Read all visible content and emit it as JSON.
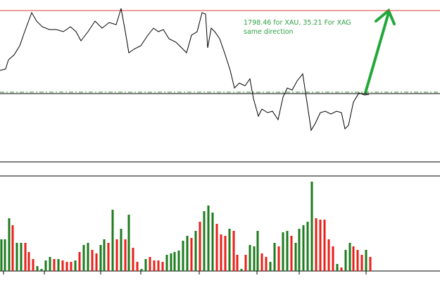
{
  "chart_data": [
    {
      "type": "line",
      "color": "#000000",
      "annotations": [
        "1798.46 for XAU, 35.21 For XAG",
        "same direction"
      ],
      "annotation_color": "#2ea043",
      "xlim": [
        0,
        625
      ],
      "ylim": [
        0,
        232
      ],
      "x": [
        0,
        8,
        12,
        20,
        28,
        35,
        45,
        52,
        60,
        70,
        80,
        90,
        100,
        108,
        115,
        125,
        135,
        145,
        155,
        165,
        172,
        178,
        183,
        190,
        200,
        210,
        218,
        225,
        232,
        240,
        250,
        258,
        265,
        272,
        280,
        287,
        292,
        295,
        300,
        305,
        312,
        320,
        327,
        333,
        340,
        348,
        355,
        360,
        367,
        372,
        380,
        387,
        395,
        402,
        408,
        415,
        422,
        430,
        436,
        442,
        448,
        455,
        462,
        470,
        478,
        485,
        490,
        495,
        502,
        510,
        518,
        524
      ],
      "values": [
        132,
        134,
        147,
        154,
        167,
        187,
        214,
        202,
        194,
        190,
        190,
        187,
        194,
        187,
        174,
        187,
        202,
        192,
        200,
        197,
        220,
        187,
        157,
        162,
        167,
        182,
        192,
        187,
        190,
        177,
        172,
        164,
        157,
        182,
        187,
        214,
        212,
        164,
        192,
        187,
        177,
        154,
        132,
        107,
        114,
        110,
        120,
        92,
        67,
        77,
        72,
        74,
        62,
        94,
        107,
        104,
        117,
        127,
        87,
        47,
        57,
        72,
        74,
        70,
        74,
        72,
        49,
        54,
        87,
        100,
        97,
        98
      ],
      "hlines": [
        {
          "value": 217,
          "color": "#e03b3b",
          "dash": "none"
        },
        {
          "value": 101,
          "color": "#2e8b2e",
          "dash": "6 3 2 3"
        },
        {
          "value": 99,
          "color": "#000000",
          "dash": "none"
        }
      ]
    },
    {
      "type": "bar",
      "xlim": [
        0,
        625
      ],
      "ylim": [
        0,
        135
      ],
      "x": [
        2,
        7,
        13,
        18,
        24,
        30,
        36,
        41,
        47,
        53,
        59,
        65,
        71,
        77,
        83,
        89,
        95,
        101,
        107,
        113,
        119,
        125,
        131,
        137,
        143,
        148,
        154,
        160,
        166,
        172,
        178,
        183,
        189,
        195,
        201,
        207,
        213,
        219,
        225,
        231,
        237,
        243,
        248,
        254,
        260,
        266,
        272,
        278,
        284,
        290,
        296,
        302,
        308,
        314,
        320,
        326,
        332,
        337,
        343,
        349,
        355,
        361,
        366,
        372,
        378,
        384,
        390,
        396,
        402,
        408,
        414,
        420,
        425,
        431,
        437,
        443,
        449,
        455,
        461,
        467,
        473,
        479,
        485,
        491,
        497,
        502,
        508,
        514,
        520,
        526
      ],
      "values": [
        45,
        45,
        75,
        65,
        40,
        40,
        40,
        27,
        17,
        7,
        3,
        15,
        20,
        17,
        17,
        15,
        13,
        13,
        15,
        27,
        37,
        40,
        30,
        25,
        37,
        45,
        40,
        87,
        45,
        60,
        45,
        80,
        33,
        13,
        3,
        17,
        20,
        15,
        15,
        13,
        23,
        25,
        27,
        29,
        43,
        50,
        47,
        57,
        70,
        85,
        93,
        83,
        67,
        52,
        50,
        60,
        57,
        23,
        3,
        23,
        37,
        35,
        57,
        25,
        20,
        13,
        40,
        35,
        55,
        57,
        50,
        40,
        60,
        65,
        70,
        127,
        75,
        73,
        73,
        45,
        35,
        10,
        5,
        30,
        40,
        35,
        30,
        23,
        30,
        20
      ],
      "colors": [
        "#1e7b1e",
        "#1e7b1e",
        "#1e7b1e",
        "#e8201a",
        "#1e7b1e",
        "#1e7b1e",
        "#e8201a",
        "#e8201a",
        "#e8201a",
        "#1e7b1e",
        "#1e7b1e",
        "#1e7b1e",
        "#1e7b1e",
        "#e8201a",
        "#1e7b1e",
        "#e8201a",
        "#e8201a",
        "#e8201a",
        "#1e7b1e",
        "#e8201a",
        "#1e7b1e",
        "#1e7b1e",
        "#e8201a",
        "#e8201a",
        "#1e7b1e",
        "#1e7b1e",
        "#e8201a",
        "#1e7b1e",
        "#e8201a",
        "#1e7b1e",
        "#e8201a",
        "#1e7b1e",
        "#e8201a",
        "#e8201a",
        "#1e7b1e",
        "#1e7b1e",
        "#e8201a",
        "#e8201a",
        "#e8201a",
        "#e8201a",
        "#1e7b1e",
        "#1e7b1e",
        "#1e7b1e",
        "#1e7b1e",
        "#1e7b1e",
        "#1e7b1e",
        "#e8201a",
        "#1e7b1e",
        "#e8201a",
        "#1e7b1e",
        "#1e7b1e",
        "#1e7b1e",
        "#e8201a",
        "#e8201a",
        "#e8201a",
        "#1e7b1e",
        "#e8201a",
        "#e8201a",
        "#1e7b1e",
        "#e8201a",
        "#1e7b1e",
        "#1e7b1e",
        "#1e7b1e",
        "#e8201a",
        "#e8201a",
        "#1e7b1e",
        "#1e7b1e",
        "#e8201a",
        "#1e7b1e",
        "#1e7b1e",
        "#e8201a",
        "#1e7b1e",
        "#1e7b1e",
        "#1e7b1e",
        "#1e7b1e",
        "#1e7b1e",
        "#e8201a",
        "#e8201a",
        "#e8201a",
        "#e8201a",
        "#e8201a",
        "#1e7b1e",
        "#e8201a",
        "#1e7b1e",
        "#1e7b1e",
        "#e8201a",
        "#e8201a",
        "#e8201a",
        "#1e7b1e",
        "#e8201a"
      ]
    }
  ]
}
